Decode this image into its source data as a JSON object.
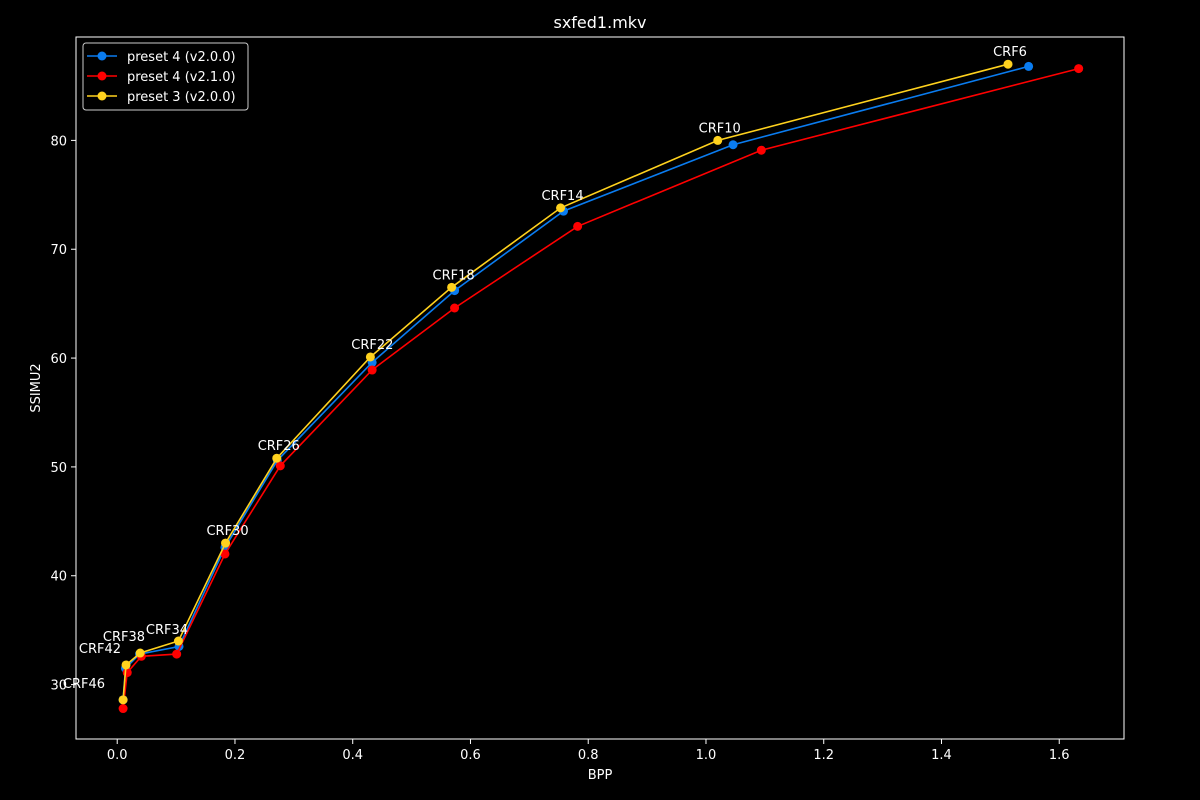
{
  "chart_data": {
    "type": "line",
    "title": "sxfed1.mkv",
    "xlabel": "BPP",
    "ylabel": "SSIMU2",
    "xlim": [
      -0.07,
      1.71
    ],
    "ylim": [
      25,
      89.5
    ],
    "xticks": [
      0.0,
      0.2,
      0.4,
      0.6,
      0.8,
      1.0,
      1.2,
      1.4,
      1.6
    ],
    "xtick_labels": [
      "0.0",
      "0.2",
      "0.4",
      "0.6",
      "0.8",
      "1.0",
      "1.2",
      "1.4",
      "1.6"
    ],
    "yticks": [
      30,
      40,
      50,
      60,
      70,
      80
    ],
    "ytick_labels": [
      "30",
      "40",
      "50",
      "60",
      "70",
      "80"
    ],
    "grid": false,
    "legend_position": "top-left",
    "series": [
      {
        "name": "preset 4 (v2.0.0)",
        "color": "#0a7cf0",
        "x": [
          1.548,
          1.046,
          0.758,
          0.573,
          0.433,
          0.272,
          0.183,
          0.105,
          0.038,
          0.014,
          0.01
        ],
        "y": [
          86.8,
          79.6,
          73.5,
          66.2,
          59.6,
          50.6,
          42.6,
          33.5,
          32.8,
          31.5,
          28.6
        ]
      },
      {
        "name": "preset 4 (v2.1.0)",
        "color": "#ff0000",
        "x": [
          1.633,
          1.094,
          0.782,
          0.573,
          0.433,
          0.277,
          0.183,
          0.101,
          0.041,
          0.017,
          0.01
        ],
        "y": [
          86.6,
          79.1,
          72.1,
          64.6,
          58.9,
          50.1,
          42.0,
          32.8,
          32.6,
          31.1,
          27.8
        ]
      },
      {
        "name": "preset 3 (v2.0.0)",
        "color": "#ffd21e",
        "x": [
          1.513,
          1.02,
          0.753,
          0.568,
          0.43,
          0.271,
          0.184,
          0.104,
          0.039,
          0.015,
          0.01
        ],
        "y": [
          87.0,
          80.0,
          73.8,
          66.5,
          60.1,
          50.8,
          43.0,
          34.0,
          32.9,
          31.8,
          28.6
        ]
      }
    ],
    "annotations": [
      {
        "text": "CRF6",
        "x": 1.513,
        "y": 87.0
      },
      {
        "text": "CRF10",
        "x": 1.02,
        "y": 80.0
      },
      {
        "text": "CRF14",
        "x": 0.753,
        "y": 73.8
      },
      {
        "text": "CRF18",
        "x": 0.568,
        "y": 66.5
      },
      {
        "text": "CRF22",
        "x": 0.43,
        "y": 60.1
      },
      {
        "text": "CRF26",
        "x": 0.271,
        "y": 50.8
      },
      {
        "text": "CRF30",
        "x": 0.184,
        "y": 43.0
      },
      {
        "text": "CRF34",
        "x": 0.104,
        "y": 34.0
      },
      {
        "text": "CRF38",
        "x": 0.039,
        "y": 32.9
      },
      {
        "text": "CRF42",
        "x": 0.015,
        "y": 31.8
      },
      {
        "text": "CRF46",
        "x": 0.01,
        "y": 28.6
      }
    ]
  }
}
